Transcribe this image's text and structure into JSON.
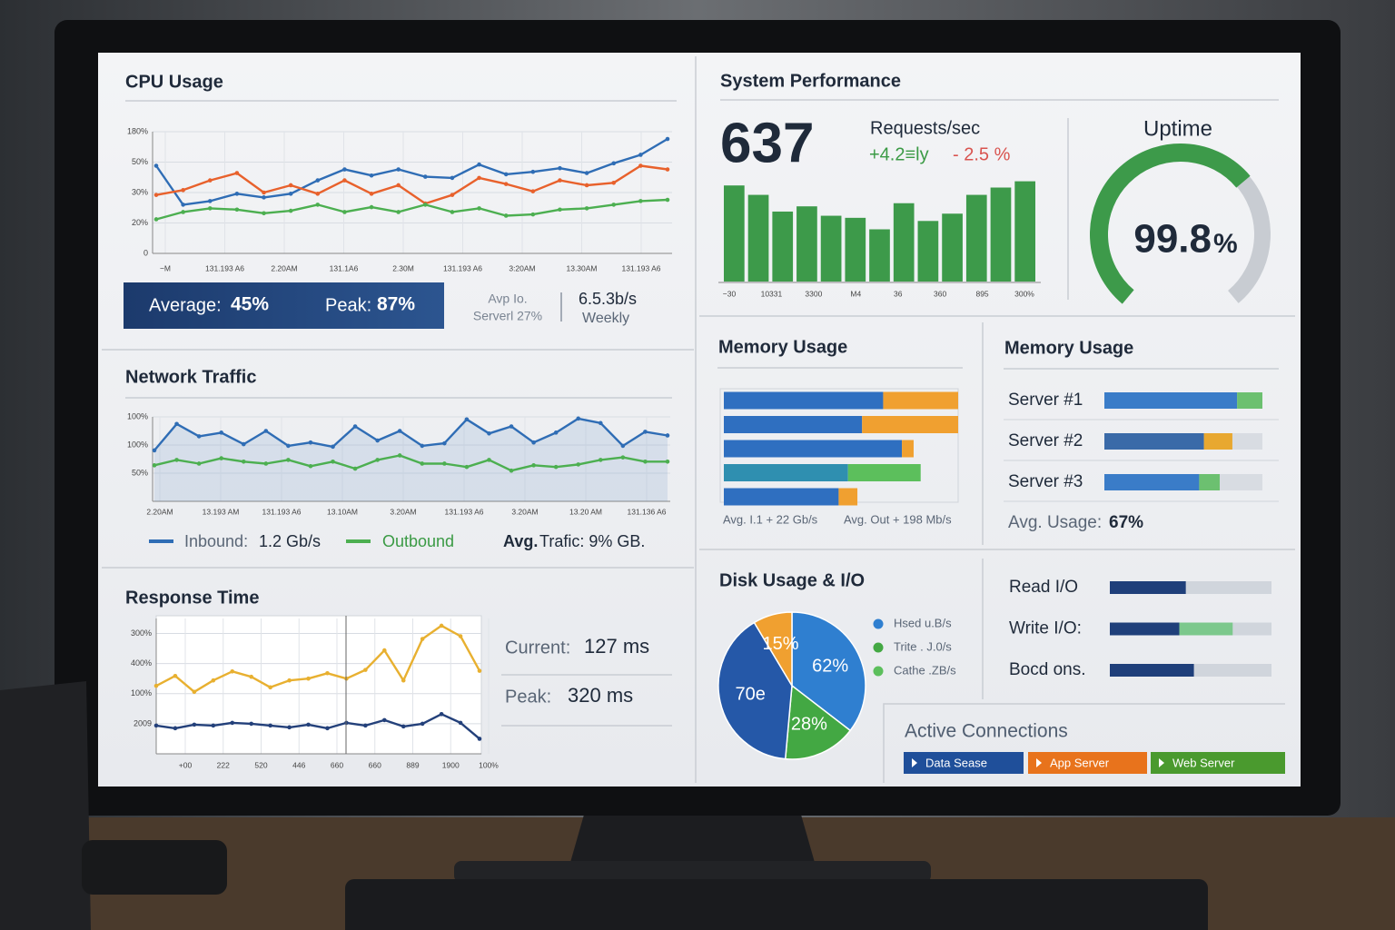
{
  "cpu": {
    "title": "CPU Usage",
    "ylim": [
      0,
      100
    ],
    "yticks": [
      0,
      {
        "value": 25,
        "label": "20%"
      },
      {
        "value": 50,
        "label": "30%"
      },
      {
        "value": 75,
        "label": "50%"
      },
      {
        "value": 100,
        "label": "180%"
      }
    ],
    "xtick_labels": [
      "−M",
      "131.193 A6",
      "2.20AM",
      "131.1A6",
      "2.30M",
      "131.193 A6",
      "3:20AM",
      "13.30AM",
      "131.193 A6"
    ],
    "series": [
      {
        "color": "#2f6db5",
        "values": [
          72,
          40,
          43,
          49,
          46,
          49,
          60,
          69,
          64,
          69,
          63,
          62,
          73,
          65,
          67,
          70,
          66,
          74,
          81,
          94
        ]
      },
      {
        "color": "#e8612c",
        "values": [
          48,
          52,
          60,
          66,
          50,
          56,
          49,
          60,
          49,
          56,
          41,
          48,
          62,
          57,
          51,
          60,
          56,
          58,
          72,
          69
        ]
      },
      {
        "color": "#4caf50",
        "values": [
          28,
          34,
          37,
          36,
          33,
          35,
          40,
          34,
          38,
          34,
          40,
          34,
          37,
          31,
          32,
          36,
          37,
          40,
          43,
          44
        ]
      }
    ],
    "summary": {
      "average_label": "Average:",
      "average": "45%",
      "peak_label": "Peak:",
      "peak": "87%",
      "note": "Avp Io.",
      "server": "Serverl 27%",
      "rate": "6.5.3b/s",
      "period": "Weekly"
    }
  },
  "network": {
    "title": "Network Traffic",
    "ylim": [
      0,
      3
    ],
    "yticks": [
      {
        "value": 1,
        "label": "50%"
      },
      {
        "value": 2,
        "label": "100%"
      },
      {
        "value": 3,
        "label": "100%"
      }
    ],
    "xtick_labels": [
      "2.20AM",
      "13.193 AM",
      "131.193 A6",
      "13.10AM",
      "3.20AM",
      "131.193 A6",
      "3.20AM",
      "13.20 AM",
      "131.136 A6"
    ],
    "series": [
      {
        "name": "Inbound:",
        "color": "#2f6db5",
        "values": [
          1.81,
          2.75,
          2.31,
          2.44,
          2.03,
          2.5,
          1.97,
          2.09,
          1.94,
          2.66,
          2.16,
          2.5,
          1.97,
          2.06,
          2.91,
          2.41,
          2.66,
          2.09,
          2.44,
          2.94,
          2.78,
          1.97,
          2.47,
          2.34
        ]
      },
      {
        "name": "Outbound",
        "color": "#4caf50",
        "values": [
          1.28,
          1.47,
          1.34,
          1.53,
          1.41,
          1.34,
          1.47,
          1.25,
          1.41,
          1.16,
          1.47,
          1.63,
          1.34,
          1.34,
          1.22,
          1.47,
          1.09,
          1.28,
          1.22,
          1.31,
          1.47,
          1.56,
          1.41,
          1.41
        ]
      }
    ],
    "inbound_text": "1.2 Gb/s",
    "avg_label": "Avg.",
    "avg_text": "Trafic: 9% GB."
  },
  "response": {
    "title": "Response Time",
    "ylim": [
      0,
      4.5
    ],
    "yticks": [
      {
        "value": 1,
        "label": "2009"
      },
      {
        "value": 2,
        "label": "100%"
      },
      {
        "value": 3,
        "label": "400%"
      },
      {
        "value": 4,
        "label": "300%"
      }
    ],
    "xtick_labels": [
      "+00",
      "222",
      "520",
      "446",
      "660",
      "660",
      "889",
      "1900",
      "100%"
    ],
    "series": [
      {
        "color": "#e8b030",
        "values": [
          2.26,
          2.59,
          2.06,
          2.44,
          2.74,
          2.56,
          2.21,
          2.44,
          2.5,
          2.68,
          2.5,
          2.79,
          3.44,
          2.44,
          3.82,
          4.26,
          3.91,
          2.76
        ]
      },
      {
        "color": "#23407a",
        "values": [
          0.94,
          0.85,
          0.97,
          0.94,
          1.03,
          1.0,
          0.94,
          0.88,
          0.97,
          0.85,
          1.03,
          0.94,
          1.12,
          0.91,
          1.0,
          1.32,
          1.03,
          0.5
        ]
      }
    ],
    "current_label": "Current:",
    "current": "127 ms",
    "peak_label": "Peak:",
    "peak": "320 ms"
  },
  "performance": {
    "title": "System Performance",
    "requests": 637,
    "requests_label": "Requests/sec",
    "change_up": "+4.2≡ly",
    "change_down": "- 2.5 %",
    "ylim": [
      0,
      100
    ],
    "color": "#3d9a4a",
    "values": [
      92,
      83,
      67,
      72,
      63,
      61,
      50,
      75,
      58,
      65,
      83,
      90,
      96
    ],
    "xtick_labels": [
      "−30",
      "10331",
      "3300",
      "M4",
      "36",
      "360",
      "895",
      "300%"
    ],
    "uptime_title": "Uptime",
    "uptime": 99.8,
    "uptime_unit": "%"
  },
  "memory_left": {
    "title": "Memory Usage",
    "xlim": [
      0,
      100
    ],
    "rows": [
      [
        {
          "value": 68,
          "color": "#2f6fc0"
        },
        {
          "value": 32,
          "color": "#f0a030"
        }
      ],
      [
        {
          "value": 59,
          "color": "#2f6fc0"
        },
        {
          "value": 41,
          "color": "#f0a030"
        }
      ],
      [
        {
          "value": 76,
          "color": "#2f6fc0"
        },
        {
          "value": 5,
          "color": "#f0a030"
        }
      ],
      [
        {
          "value": 53,
          "color": "#2f8fb0"
        },
        {
          "value": 31,
          "color": "#5cbf5c"
        }
      ],
      [
        {
          "value": 49,
          "color": "#2f6fc0"
        },
        {
          "value": 8,
          "color": "#f0a030"
        }
      ]
    ],
    "caption_in": "Avg. I.1 + 22 Gb/s",
    "caption_out": "Avg. Out + 198 Mb/s"
  },
  "memory_right": {
    "title": "Memory Usage",
    "xlim": [
      0,
      100
    ],
    "servers": [
      {
        "label": "Server #1",
        "segments": [
          {
            "value": 84,
            "color": "#3a7cc8"
          },
          {
            "value": 16,
            "color": "#6cc070"
          }
        ]
      },
      {
        "label": "Server #2",
        "segments": [
          {
            "value": 63,
            "color": "#3a6aa8"
          },
          {
            "value": 18,
            "color": "#e8a830"
          }
        ]
      },
      {
        "label": "Server #3",
        "segments": [
          {
            "value": 60,
            "color": "#3a7cc8"
          },
          {
            "value": 13,
            "color": "#6cc070"
          }
        ]
      }
    ],
    "avg_label": "Avg. Usage:",
    "avg": "67%"
  },
  "disk": {
    "title": "Disk Usage & I/O",
    "slices": [
      {
        "value": 62,
        "value_label": "62%",
        "color": "#2f7fd0"
      },
      {
        "value": 28,
        "value_label": "28%",
        "color": "#43a843"
      },
      {
        "value": 70,
        "value_label": "70e",
        "color": "#2558a8"
      },
      {
        "value": 15,
        "value_label": "15%",
        "color": "#f0a030"
      }
    ],
    "legend": [
      {
        "label": "Hsed u.B/s",
        "color": "#2f7fd0"
      },
      {
        "label": "Trite . J.0/s",
        "color": "#43a843"
      },
      {
        "label": "Cathe .ZB/s",
        "color": "#5cbf5c"
      }
    ],
    "xlim": [
      0,
      100
    ],
    "io": [
      {
        "label": "Read I/O",
        "segments": [
          {
            "value": 47,
            "color": "#1f3f7a"
          }
        ]
      },
      {
        "label": "Write I/O:",
        "segments": [
          {
            "value": 43,
            "color": "#1f3f7a"
          },
          {
            "value": 33,
            "color": "#7cc88c"
          }
        ]
      },
      {
        "label": "Bocd ons.",
        "segments": [
          {
            "value": 52,
            "color": "#1f3f7a"
          }
        ]
      }
    ]
  },
  "connections": {
    "title": "Active Connections",
    "buttons": [
      {
        "label": "Data Sease",
        "color": "#1f4f9a"
      },
      {
        "label": "App Server",
        "color": "#e8731c"
      },
      {
        "label": "Web Server",
        "color": "#4a9a2e"
      }
    ]
  }
}
